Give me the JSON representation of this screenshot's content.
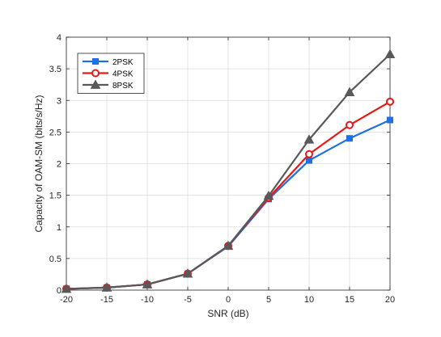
{
  "chart_data": {
    "type": "line",
    "xlabel": "SNR (dB)",
    "ylabel": "Capacity of OAM-SM (bits/s/Hz)",
    "x": [
      -20,
      -15,
      -10,
      -5,
      0,
      5,
      10,
      15,
      20
    ],
    "xlim": [
      -20,
      20
    ],
    "ylim": [
      0,
      4
    ],
    "xticks": [
      "-20",
      "-15",
      "-10",
      "-5",
      "0",
      "5",
      "10",
      "15",
      "20"
    ],
    "yticks": [
      "0",
      "0.5",
      "1",
      "1.5",
      "2",
      "2.5",
      "3",
      "3.5",
      "4"
    ],
    "grid": true,
    "legend_position": "top-left",
    "series": [
      {
        "name": "2PSK",
        "color": "#1f6fe5",
        "marker": "square",
        "values": [
          0.02,
          0.04,
          0.09,
          0.26,
          0.69,
          1.44,
          2.05,
          2.4,
          2.69
        ]
      },
      {
        "name": "4PSK",
        "color": "#e61919",
        "marker": "circle",
        "values": [
          0.02,
          0.04,
          0.09,
          0.26,
          0.7,
          1.46,
          2.15,
          2.61,
          2.98
        ]
      },
      {
        "name": "8PSK",
        "color": "#595959",
        "marker": "triangle",
        "values": [
          0.02,
          0.04,
          0.09,
          0.26,
          0.7,
          1.49,
          2.38,
          3.13,
          3.73
        ]
      }
    ]
  }
}
